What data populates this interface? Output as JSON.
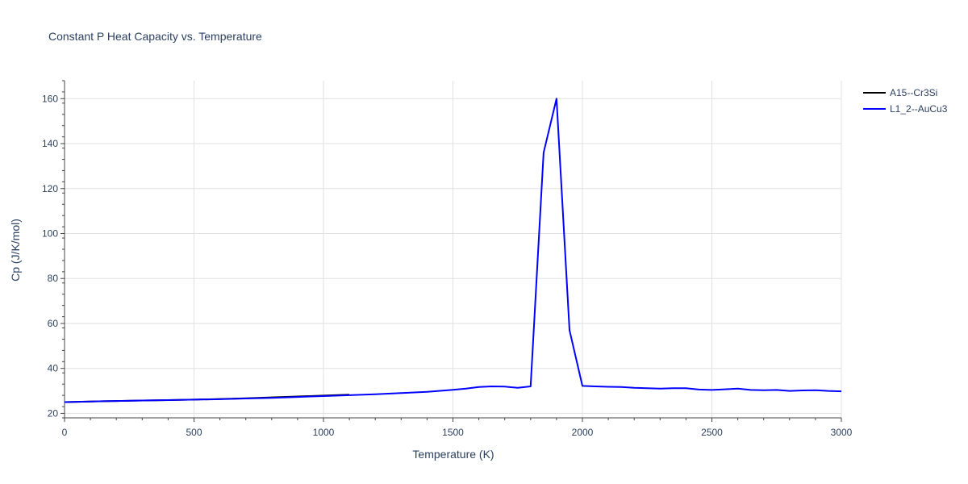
{
  "chart_data": {
    "type": "line",
    "title": "Constant P Heat Capacity vs. Temperature",
    "xlabel": "Temperature (K)",
    "ylabel": "Cp (J/K/mol)",
    "xlim": [
      0,
      3000
    ],
    "ylim": [
      18,
      168
    ],
    "xticks": [
      0,
      500,
      1000,
      1500,
      2000,
      2500,
      3000
    ],
    "yticks": [
      20,
      40,
      60,
      80,
      100,
      120,
      140,
      160
    ],
    "grid": true,
    "legend_position": "top-right",
    "series": [
      {
        "name": "A15--Cr3Si",
        "color": "#000000",
        "x": [
          0,
          100,
          200,
          300,
          400,
          500,
          600,
          700,
          800,
          900,
          1000,
          1100
        ],
        "y": [
          25.0,
          25.3,
          25.5,
          25.7,
          25.9,
          26.1,
          26.4,
          26.7,
          27.1,
          27.5,
          27.9,
          28.3
        ]
      },
      {
        "name": "L1_2--AuCu3",
        "color": "#0000ff",
        "x": [
          0,
          100,
          200,
          300,
          400,
          500,
          600,
          700,
          800,
          900,
          1000,
          1100,
          1200,
          1300,
          1400,
          1500,
          1550,
          1600,
          1650,
          1700,
          1750,
          1800,
          1850,
          1900,
          1950,
          2000,
          2050,
          2100,
          2150,
          2200,
          2250,
          2300,
          2350,
          2400,
          2450,
          2500,
          2550,
          2600,
          2650,
          2700,
          2750,
          2800,
          2850,
          2900,
          2950,
          3000
        ],
        "y": [
          25.0,
          25.3,
          25.5,
          25.7,
          25.9,
          26.1,
          26.3,
          26.6,
          26.9,
          27.3,
          27.7,
          28.1,
          28.5,
          29.0,
          29.6,
          30.5,
          31.0,
          31.7,
          32.0,
          31.9,
          31.4,
          32.0,
          136.0,
          160.0,
          57.0,
          32.2,
          32.0,
          31.8,
          31.7,
          31.4,
          31.2,
          31.0,
          31.2,
          31.2,
          30.6,
          30.4,
          30.7,
          31.0,
          30.4,
          30.3,
          30.4,
          30.0,
          30.2,
          30.3,
          30.0,
          29.8
        ]
      }
    ]
  }
}
